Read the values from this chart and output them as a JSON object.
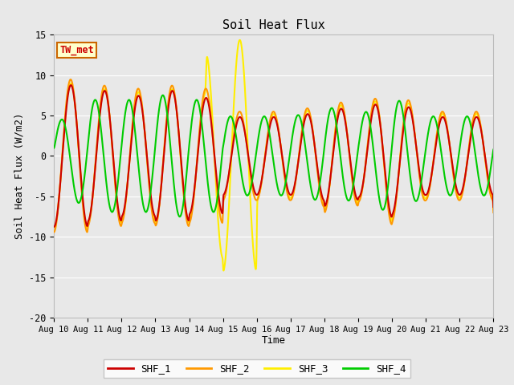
{
  "title": "Soil Heat Flux",
  "xlabel": "Time",
  "ylabel": "Soil Heat Flux (W/m2)",
  "ylim": [
    -20,
    15
  ],
  "yticks": [
    -20,
    -15,
    -10,
    -5,
    0,
    5,
    10,
    15
  ],
  "fig_bg_color": "#e8e8e8",
  "plot_bg_color": "#e8e8e8",
  "grid_color": "#d0d0d0",
  "legend_label": "TW_met",
  "series_colors": {
    "SHF_1": "#cc0000",
    "SHF_2": "#ff9900",
    "SHF_3": "#ffee00",
    "SHF_4": "#00cc00"
  },
  "legend_colors": [
    "#cc0000",
    "#ff9900",
    "#ffee00",
    "#00cc00"
  ],
  "legend_labels": [
    "SHF_1",
    "SHF_2",
    "SHF_3",
    "SHF_4"
  ],
  "x_tick_labels": [
    "Aug 10",
    "Aug 11",
    "Aug 12",
    "Aug 13",
    "Aug 14",
    "Aug 15",
    "Aug 16",
    "Aug 17",
    "Aug 18",
    "Aug 19",
    "Aug 20",
    "Aug 21",
    "Aug 22",
    "Aug 23"
  ],
  "num_days": 13
}
